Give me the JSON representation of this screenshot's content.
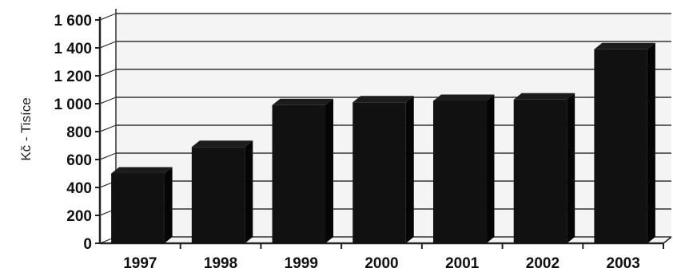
{
  "chart_data": {
    "type": "bar",
    "style": "3d-column",
    "categories": [
      "1997",
      "1998",
      "1999",
      "2000",
      "2001",
      "2002",
      "2003"
    ],
    "values": [
      500,
      690,
      990,
      1010,
      1020,
      1030,
      1390
    ],
    "ylabel": "Kč - Tisíce",
    "xlabel": "",
    "title": "",
    "ylim": [
      0,
      1600
    ],
    "yticks": [
      0,
      200,
      400,
      600,
      800,
      1000,
      1200,
      1400,
      1600
    ],
    "ytick_labels": [
      "0",
      "200",
      "400",
      "600",
      "800",
      "1 000",
      "1 200",
      "1 400",
      "1 600"
    ],
    "grid": true,
    "legend": "none",
    "colors": {
      "bar": "#111111",
      "bar_top": "#1c1c1c",
      "bar_side": "#050505",
      "grid": "#333333",
      "axis": "#222222",
      "wall": "#f4f4f4"
    }
  }
}
